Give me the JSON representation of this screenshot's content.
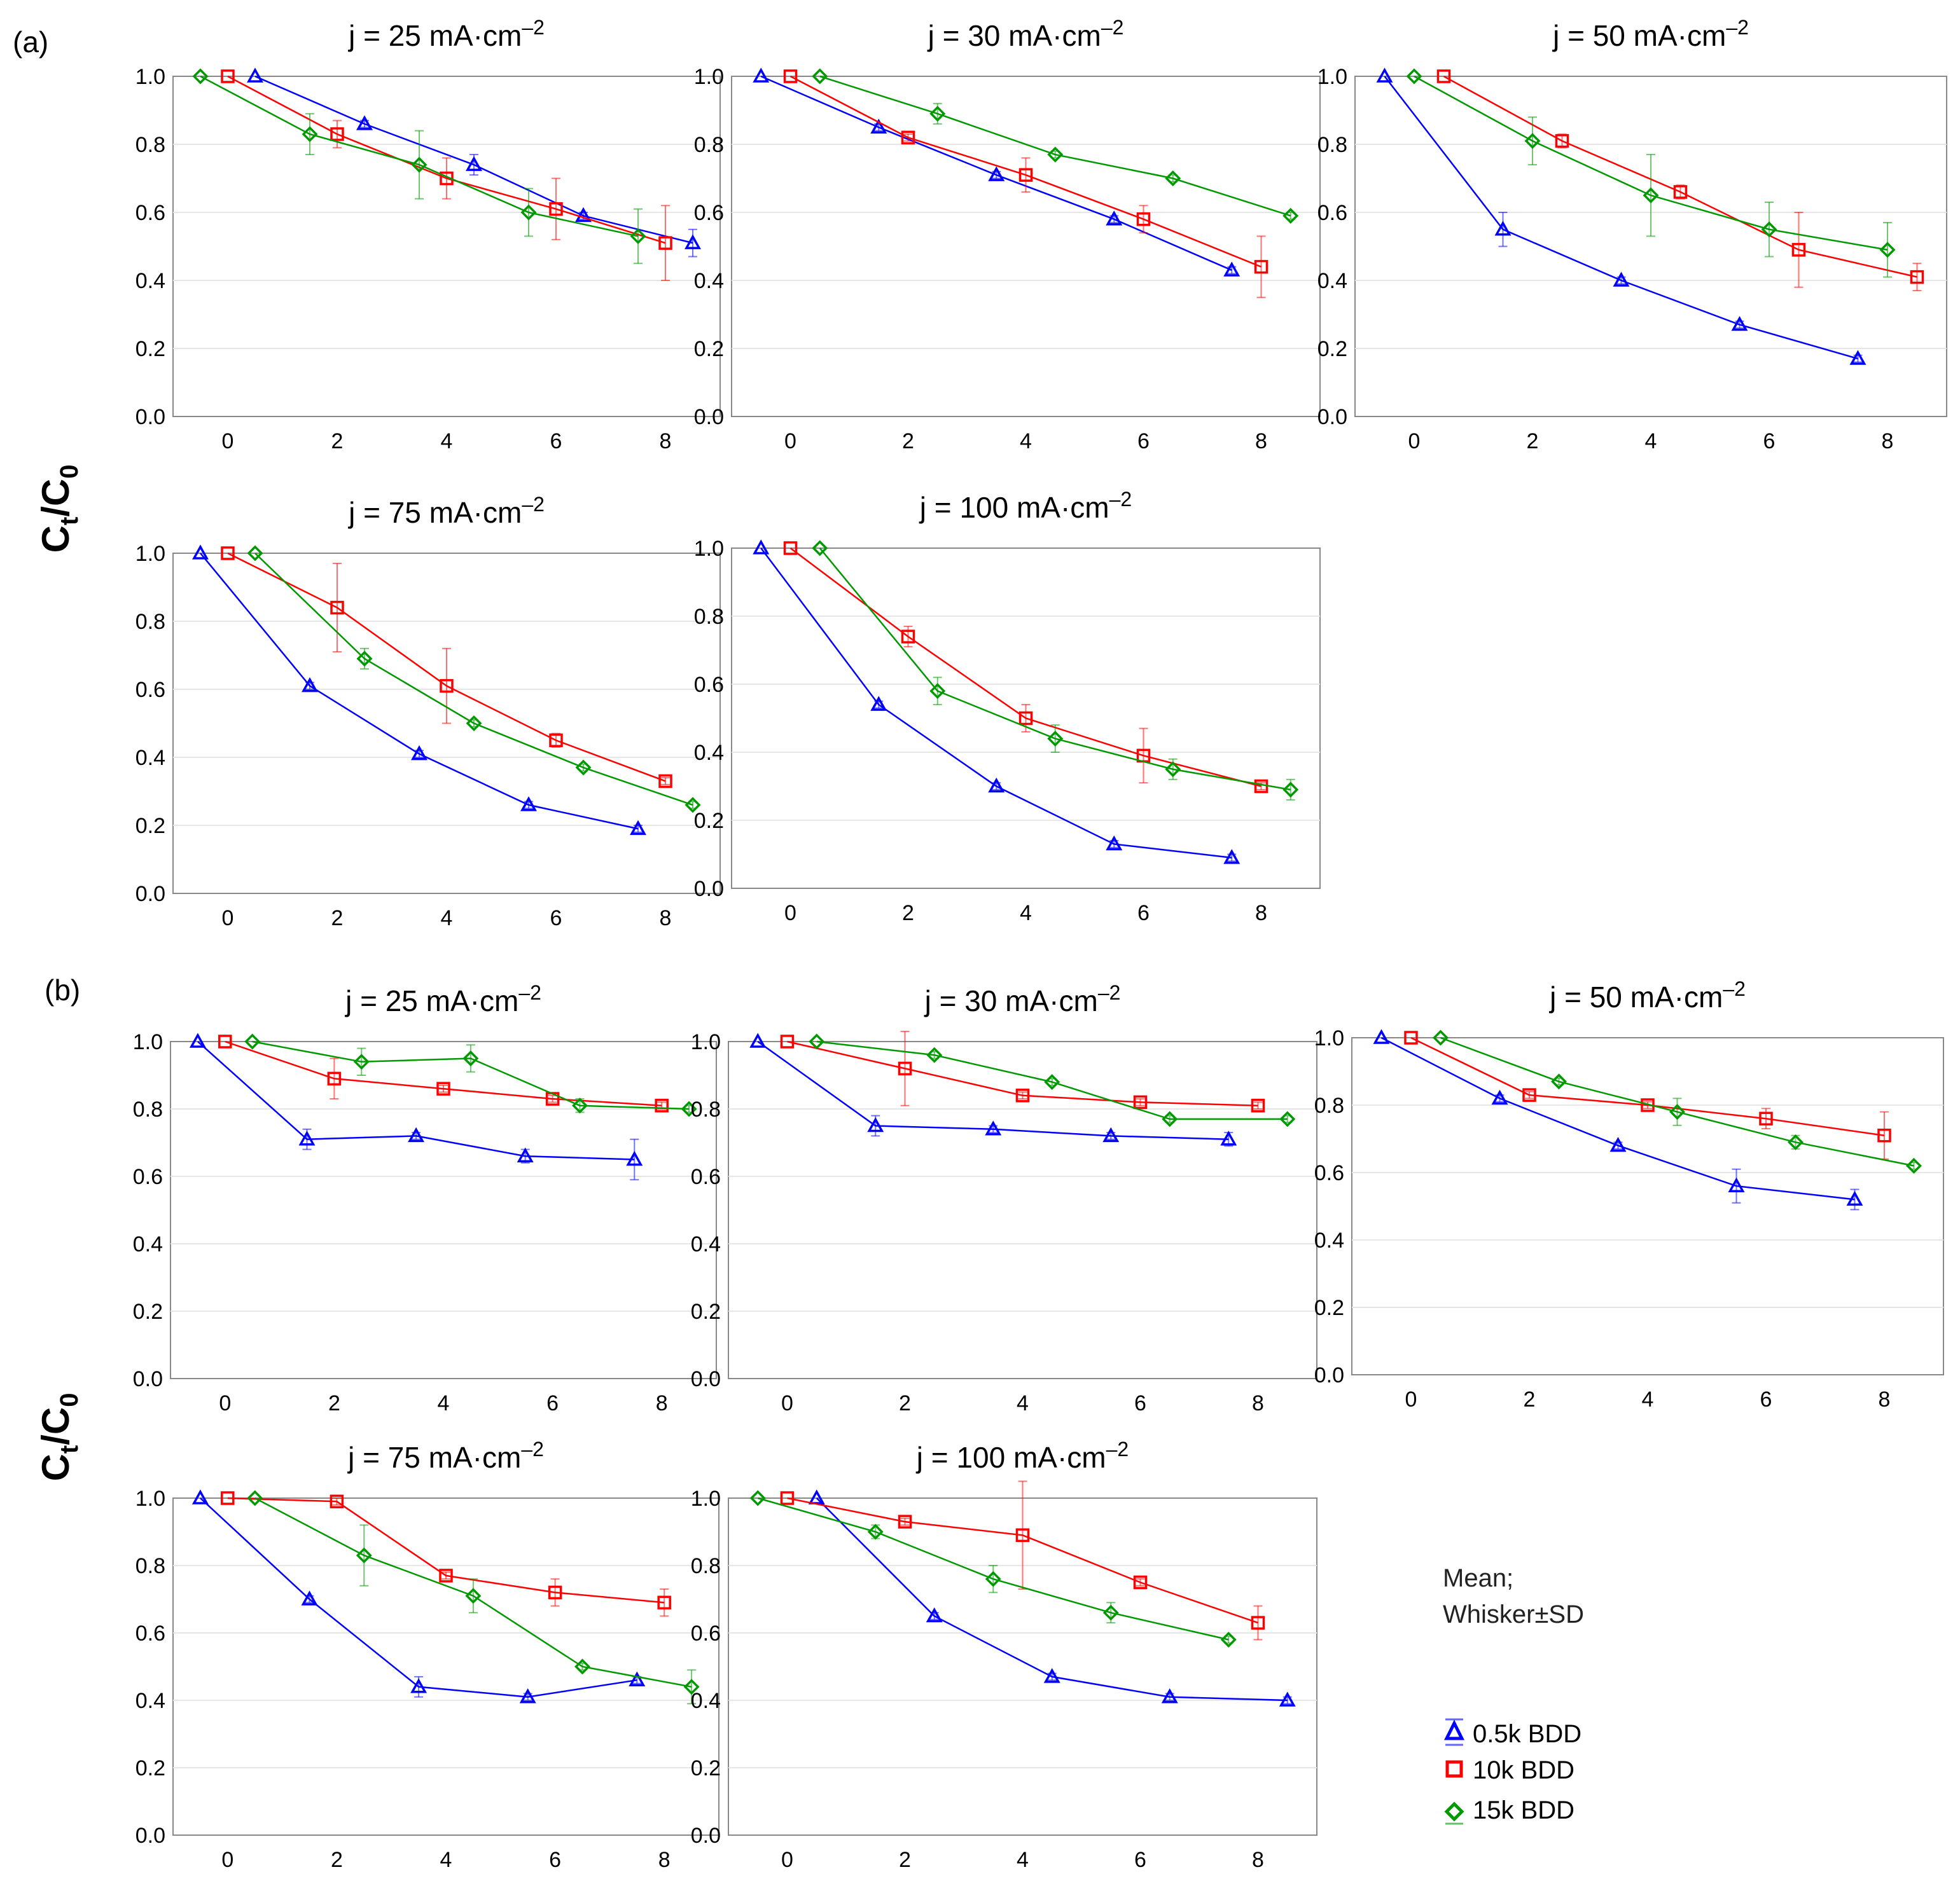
{
  "figure": {
    "panel_labels": [
      "(a)",
      "(b)"
    ],
    "y_axis_label": {
      "main": "C",
      "sub_t": "t",
      "slash": "/C",
      "sub_0": "0"
    },
    "legend": {
      "note_line1": "Mean;",
      "note_line2": "Whisker±SD",
      "entries": [
        {
          "name": "0.5k BDD",
          "color": "#0000ff",
          "marker": "triangle"
        },
        {
          "name": "10k BDD",
          "color": "#ff0000",
          "marker": "square"
        },
        {
          "name": "15k BDD",
          "color": "#009900",
          "marker": "diamond"
        }
      ]
    },
    "colors": {
      "s0": "#0000ff",
      "s1": "#ff0000",
      "s2": "#009900",
      "grid": "#e6e6e6",
      "frame": "#888888"
    }
  },
  "chart_data": [
    {
      "panel": "a",
      "type": "line",
      "title": "j = 25 mA·cm",
      "title_exp": "–2",
      "xlabel": "",
      "ylabel": "Ct/C0",
      "xlim": [
        -1,
        9
      ],
      "ylim": [
        0,
        1
      ],
      "xticks": [
        0,
        2,
        4,
        6,
        8
      ],
      "yticks": [
        "0.0",
        "0.2",
        "0.4",
        "0.6",
        "0.8",
        "1.0"
      ],
      "series": [
        {
          "name": "0.5k BDD",
          "x": [
            0.5,
            2.5,
            4.5,
            6.5,
            8.5
          ],
          "y": [
            1.0,
            0.86,
            0.74,
            0.59,
            0.51
          ],
          "sd": [
            0.0,
            0.01,
            0.03,
            0.01,
            0.04
          ]
        },
        {
          "name": "10k BDD",
          "x": [
            0,
            2,
            4,
            6,
            8
          ],
          "y": [
            1.0,
            0.83,
            0.7,
            0.61,
            0.51
          ],
          "sd": [
            0.0,
            0.04,
            0.06,
            0.09,
            0.11
          ]
        },
        {
          "name": "15k BDD",
          "x": [
            -0.5,
            1.5,
            3.5,
            5.5,
            7.5
          ],
          "y": [
            1.0,
            0.83,
            0.74,
            0.6,
            0.53
          ],
          "sd": [
            0.0,
            0.06,
            0.1,
            0.07,
            0.08
          ]
        }
      ]
    },
    {
      "panel": "a",
      "type": "line",
      "title": "j = 30 mA·cm",
      "title_exp": "–2",
      "xlabel": "",
      "ylabel": "Ct/C0",
      "xlim": [
        -1,
        9
      ],
      "ylim": [
        0,
        1
      ],
      "xticks": [
        0,
        2,
        4,
        6,
        8
      ],
      "yticks": [
        "0.0",
        "0.2",
        "0.4",
        "0.6",
        "0.8",
        "1.0"
      ],
      "series": [
        {
          "name": "0.5k BDD",
          "x": [
            -0.5,
            1.5,
            3.5,
            5.5,
            7.5
          ],
          "y": [
            1.0,
            0.85,
            0.71,
            0.58,
            0.43
          ],
          "sd": [
            0.0,
            0.01,
            0.01,
            0.01,
            0.01
          ]
        },
        {
          "name": "10k BDD",
          "x": [
            0,
            2,
            4,
            6,
            8
          ],
          "y": [
            1.0,
            0.82,
            0.71,
            0.58,
            0.44
          ],
          "sd": [
            0.0,
            0.01,
            0.05,
            0.04,
            0.09
          ]
        },
        {
          "name": "15k BDD",
          "x": [
            0.5,
            2.5,
            4.5,
            6.5,
            8.5
          ],
          "y": [
            1.0,
            0.89,
            0.77,
            0.7,
            0.59
          ],
          "sd": [
            0.0,
            0.03,
            0.01,
            0.01,
            0.01
          ]
        }
      ]
    },
    {
      "panel": "a",
      "type": "line",
      "title": "j = 50 mA·cm",
      "title_exp": "–2",
      "xlabel": "",
      "ylabel": "Ct/C0",
      "xlim": [
        -1,
        9
      ],
      "ylim": [
        0,
        1
      ],
      "xticks": [
        0,
        2,
        4,
        6,
        8
      ],
      "yticks": [
        "0.0",
        "0.2",
        "0.4",
        "0.6",
        "0.8",
        "1.0"
      ],
      "series": [
        {
          "name": "0.5k BDD",
          "x": [
            -0.5,
            1.5,
            3.5,
            5.5,
            7.5
          ],
          "y": [
            1.0,
            0.55,
            0.4,
            0.27,
            0.17
          ],
          "sd": [
            0.0,
            0.05,
            0.01,
            0.01,
            0.01
          ]
        },
        {
          "name": "10k BDD",
          "x": [
            0.5,
            2.5,
            4.5,
            6.5,
            8.5
          ],
          "y": [
            1.0,
            0.81,
            0.66,
            0.49,
            0.41
          ],
          "sd": [
            0.0,
            0.02,
            0.02,
            0.11,
            0.04
          ]
        },
        {
          "name": "15k BDD",
          "x": [
            0,
            2,
            4,
            6,
            8
          ],
          "y": [
            1.0,
            0.81,
            0.65,
            0.55,
            0.49
          ],
          "sd": [
            0.0,
            0.07,
            0.12,
            0.08,
            0.08
          ]
        }
      ]
    },
    {
      "panel": "a",
      "type": "line",
      "title": "j = 75 mA·cm",
      "title_exp": "–2",
      "xlabel": "",
      "ylabel": "Ct/C0",
      "xlim": [
        -1,
        9
      ],
      "ylim": [
        0,
        1
      ],
      "xticks": [
        0,
        2,
        4,
        6,
        8
      ],
      "yticks": [
        "0.0",
        "0.2",
        "0.4",
        "0.6",
        "0.8",
        "1.0"
      ],
      "series": [
        {
          "name": "0.5k BDD",
          "x": [
            -0.5,
            1.5,
            3.5,
            5.5,
            7.5
          ],
          "y": [
            1.0,
            0.61,
            0.41,
            0.26,
            0.19
          ],
          "sd": [
            0.0,
            0.01,
            0.01,
            0.01,
            0.01
          ]
        },
        {
          "name": "10k BDD",
          "x": [
            0,
            2,
            4,
            6,
            8
          ],
          "y": [
            1.0,
            0.84,
            0.61,
            0.45,
            0.33
          ],
          "sd": [
            0.0,
            0.13,
            0.11,
            0.02,
            0.01
          ]
        },
        {
          "name": "15k BDD",
          "x": [
            0.5,
            2.5,
            4.5,
            6.5,
            8.5
          ],
          "y": [
            1.0,
            0.69,
            0.5,
            0.37,
            0.26
          ],
          "sd": [
            0.0,
            0.03,
            0.01,
            0.01,
            0.01
          ]
        }
      ]
    },
    {
      "panel": "a",
      "type": "line",
      "title": "j = 100 mA·cm",
      "title_exp": "–2",
      "xlabel": "",
      "ylabel": "Ct/C0",
      "xlim": [
        -1,
        9
      ],
      "ylim": [
        0,
        1
      ],
      "xticks": [
        0,
        2,
        4,
        6,
        8
      ],
      "yticks": [
        "0.0",
        "0.2",
        "0.4",
        "0.6",
        "0.8",
        "1.0"
      ],
      "series": [
        {
          "name": "0.5k BDD",
          "x": [
            -0.5,
            1.5,
            3.5,
            5.5,
            7.5
          ],
          "y": [
            1.0,
            0.54,
            0.3,
            0.13,
            0.09
          ],
          "sd": [
            0.0,
            0.01,
            0.01,
            0.01,
            0.01
          ]
        },
        {
          "name": "10k BDD",
          "x": [
            0,
            2,
            4,
            6,
            8
          ],
          "y": [
            1.0,
            0.74,
            0.5,
            0.39,
            0.3
          ],
          "sd": [
            0.0,
            0.03,
            0.04,
            0.08,
            0.01
          ]
        },
        {
          "name": "15k BDD",
          "x": [
            0.5,
            2.5,
            4.5,
            6.5,
            8.5
          ],
          "y": [
            1.0,
            0.58,
            0.44,
            0.35,
            0.29
          ],
          "sd": [
            0.0,
            0.04,
            0.04,
            0.03,
            0.03
          ]
        }
      ]
    },
    {
      "panel": "b",
      "type": "line",
      "title": "j = 25 mA·cm",
      "title_exp": "–2",
      "xlabel": "",
      "ylabel": "Ct/C0",
      "xlim": [
        -1,
        9
      ],
      "ylim": [
        0,
        1
      ],
      "xticks": [
        0,
        2,
        4,
        6,
        8
      ],
      "yticks": [
        "0.0",
        "0.2",
        "0.4",
        "0.6",
        "0.8",
        "1.0"
      ],
      "series": [
        {
          "name": "0.5k BDD",
          "x": [
            -0.5,
            1.5,
            3.5,
            5.5,
            7.5
          ],
          "y": [
            1.0,
            0.71,
            0.72,
            0.66,
            0.65
          ],
          "sd": [
            0.0,
            0.03,
            0.01,
            0.02,
            0.06
          ]
        },
        {
          "name": "10k BDD",
          "x": [
            0,
            2,
            4,
            6,
            8
          ],
          "y": [
            1.0,
            0.89,
            0.86,
            0.83,
            0.81
          ],
          "sd": [
            0.0,
            0.06,
            0.01,
            0.01,
            0.01
          ]
        },
        {
          "name": "15k BDD",
          "x": [
            0.5,
            2.5,
            4.5,
            6.5,
            8.5
          ],
          "y": [
            1.0,
            0.94,
            0.95,
            0.81,
            0.8
          ],
          "sd": [
            0.0,
            0.04,
            0.04,
            0.02,
            0.01
          ]
        }
      ]
    },
    {
      "panel": "b",
      "type": "line",
      "title": "j = 30 mA·cm",
      "title_exp": "–2",
      "xlabel": "",
      "ylabel": "Ct/C0",
      "xlim": [
        -1,
        9
      ],
      "ylim": [
        0,
        1
      ],
      "xticks": [
        0,
        2,
        4,
        6,
        8
      ],
      "yticks": [
        "0.0",
        "0.2",
        "0.4",
        "0.6",
        "0.8",
        "1.0"
      ],
      "series": [
        {
          "name": "0.5k BDD",
          "x": [
            -0.5,
            1.5,
            3.5,
            5.5,
            7.5
          ],
          "y": [
            1.0,
            0.75,
            0.74,
            0.72,
            0.71
          ],
          "sd": [
            0.0,
            0.03,
            0.01,
            0.01,
            0.02
          ]
        },
        {
          "name": "10k BDD",
          "x": [
            0,
            2,
            4,
            6,
            8
          ],
          "y": [
            1.0,
            0.92,
            0.84,
            0.82,
            0.81
          ],
          "sd": [
            0.0,
            0.11,
            0.01,
            0.01,
            0.01
          ]
        },
        {
          "name": "15k BDD",
          "x": [
            0.5,
            2.5,
            4.5,
            6.5,
            8.5
          ],
          "y": [
            1.0,
            0.96,
            0.88,
            0.77,
            0.77
          ],
          "sd": [
            0.0,
            0.01,
            0.01,
            0.01,
            0.01
          ]
        }
      ]
    },
    {
      "panel": "b",
      "type": "line",
      "title": "j = 50 mA·cm",
      "title_exp": "–2",
      "xlabel": "",
      "ylabel": "Ct/C0",
      "xlim": [
        -1,
        9
      ],
      "ylim": [
        0,
        1
      ],
      "xticks": [
        0,
        2,
        4,
        6,
        8
      ],
      "yticks": [
        "0.0",
        "0.2",
        "0.4",
        "0.6",
        "0.8",
        "1.0"
      ],
      "series": [
        {
          "name": "0.5k BDD",
          "x": [
            -0.5,
            1.5,
            3.5,
            5.5,
            7.5
          ],
          "y": [
            1.0,
            0.82,
            0.68,
            0.56,
            0.52
          ],
          "sd": [
            0.0,
            0.01,
            0.01,
            0.05,
            0.03
          ]
        },
        {
          "name": "10k BDD",
          "x": [
            0,
            2,
            4,
            6,
            8
          ],
          "y": [
            1.0,
            0.83,
            0.8,
            0.76,
            0.71
          ],
          "sd": [
            0.0,
            0.01,
            0.01,
            0.03,
            0.07
          ]
        },
        {
          "name": "15k BDD",
          "x": [
            0.5,
            2.5,
            4.5,
            6.5,
            8.5
          ],
          "y": [
            1.0,
            0.87,
            0.78,
            0.69,
            0.62
          ],
          "sd": [
            0.0,
            0.01,
            0.04,
            0.02,
            0.01
          ]
        }
      ]
    },
    {
      "panel": "b",
      "type": "line",
      "title": "j = 75 mA·cm",
      "title_exp": "–2",
      "xlabel": "",
      "ylabel": "Ct/C0",
      "xlim": [
        -1,
        9
      ],
      "ylim": [
        0,
        1
      ],
      "xticks": [
        0,
        2,
        4,
        6,
        8
      ],
      "yticks": [
        "0.0",
        "0.2",
        "0.4",
        "0.6",
        "0.8",
        "1.0"
      ],
      "series": [
        {
          "name": "0.5k BDD",
          "x": [
            -0.5,
            1.5,
            3.5,
            5.5,
            7.5
          ],
          "y": [
            1.0,
            0.7,
            0.44,
            0.41,
            0.46
          ],
          "sd": [
            0.0,
            0.01,
            0.03,
            0.01,
            0.01
          ]
        },
        {
          "name": "10k BDD",
          "x": [
            0,
            2,
            4,
            6,
            8
          ],
          "y": [
            1.0,
            0.99,
            0.77,
            0.72,
            0.69
          ],
          "sd": [
            0.0,
            0.01,
            0.01,
            0.04,
            0.04
          ]
        },
        {
          "name": "15k BDD",
          "x": [
            0.5,
            2.5,
            4.5,
            6.5,
            8.5
          ],
          "y": [
            1.0,
            0.83,
            0.71,
            0.5,
            0.44
          ],
          "sd": [
            0.0,
            0.09,
            0.05,
            0.01,
            0.05
          ]
        }
      ]
    },
    {
      "panel": "b",
      "type": "line",
      "title": "j = 100 mA·cm",
      "title_exp": "–2",
      "xlabel": "",
      "ylabel": "Ct/C0",
      "xlim": [
        -1,
        9
      ],
      "ylim": [
        0,
        1
      ],
      "xticks": [
        0,
        2,
        4,
        6,
        8
      ],
      "yticks": [
        "0.0",
        "0.2",
        "0.4",
        "0.6",
        "0.8",
        "1.0"
      ],
      "series": [
        {
          "name": "0.5k BDD",
          "x": [
            0.5,
            2.5,
            4.5,
            6.5,
            8.5
          ],
          "y": [
            1.0,
            0.65,
            0.47,
            0.41,
            0.4
          ],
          "sd": [
            0.0,
            0.01,
            0.01,
            0.01,
            0.01
          ]
        },
        {
          "name": "10k BDD",
          "x": [
            0,
            2,
            4,
            6,
            8
          ],
          "y": [
            1.0,
            0.93,
            0.89,
            0.75,
            0.63
          ],
          "sd": [
            0.0,
            0.01,
            0.16,
            0.01,
            0.05
          ]
        },
        {
          "name": "15k BDD",
          "x": [
            -0.5,
            1.5,
            3.5,
            5.5,
            7.5
          ],
          "y": [
            1.0,
            0.9,
            0.76,
            0.66,
            0.58
          ],
          "sd": [
            0.0,
            0.02,
            0.04,
            0.03,
            0.01
          ]
        }
      ]
    }
  ]
}
